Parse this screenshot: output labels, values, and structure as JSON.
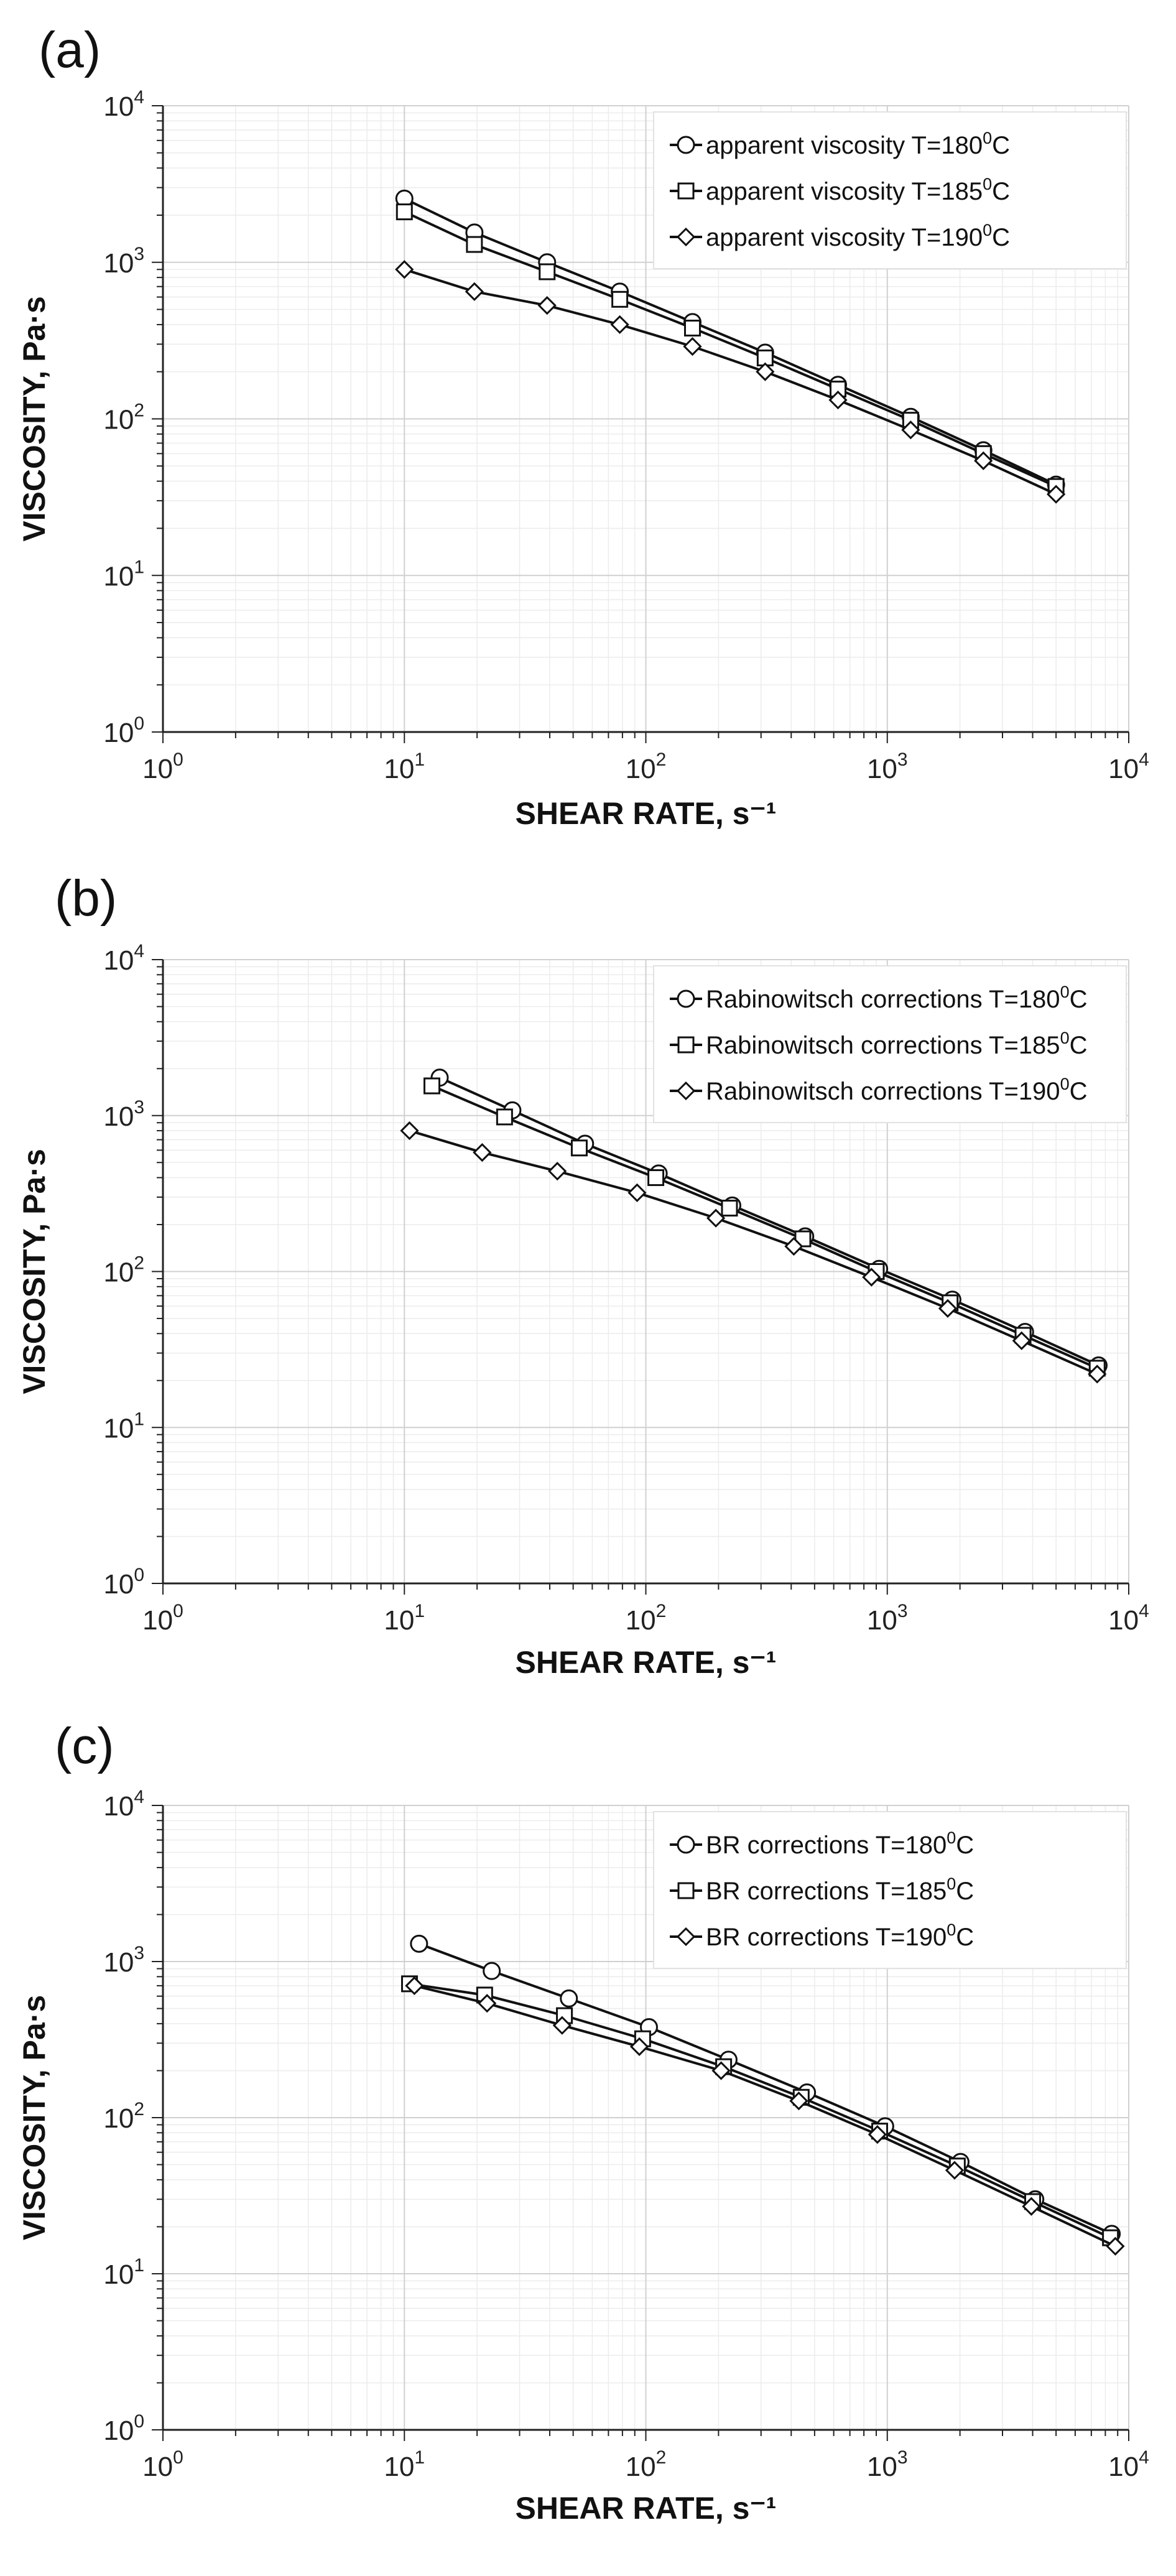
{
  "chart_data": [
    {
      "panel": "(a)",
      "type": "line",
      "xscale": "log",
      "yscale": "log",
      "xlim": [
        1,
        10000
      ],
      "ylim": [
        1,
        10000
      ],
      "xlabel": "SHEAR RATE, s⁻¹",
      "ylabel": "VISCOSITY, Pa·s",
      "x_ticks": [
        {
          "base": "10",
          "exp": "0",
          "value": 1
        },
        {
          "base": "10",
          "exp": "1",
          "value": 10
        },
        {
          "base": "10",
          "exp": "2",
          "value": 100
        },
        {
          "base": "10",
          "exp": "3",
          "value": 1000
        },
        {
          "base": "10",
          "exp": "4",
          "value": 10000
        }
      ],
      "y_ticks": [
        {
          "base": "10",
          "exp": "0",
          "value": 1
        },
        {
          "base": "10",
          "exp": "1",
          "value": 10
        },
        {
          "base": "10",
          "exp": "2",
          "value": 100
        },
        {
          "base": "10",
          "exp": "3",
          "value": 1000
        },
        {
          "base": "10",
          "exp": "4",
          "value": 10000
        }
      ],
      "legend_position": "top-right",
      "series": [
        {
          "name": "apparent viscosity T=180⁰C",
          "label_main": "apparent viscosity T=180",
          "label_sup": "0",
          "label_unit": "C",
          "marker": "circle",
          "x": [
            10,
            19.5,
            39,
            78,
            156,
            312,
            625,
            1250,
            2500,
            5000
          ],
          "y": [
            2550,
            1550,
            1000,
            650,
            415,
            265,
            165,
            103,
            63,
            38
          ]
        },
        {
          "name": "apparent viscosity T=185⁰C",
          "label_main": "apparent viscosity T=185",
          "label_sup": "0",
          "label_unit": "C",
          "marker": "square",
          "x": [
            10,
            19.5,
            39,
            78,
            156,
            312,
            625,
            1250,
            2500,
            5000
          ],
          "y": [
            2100,
            1300,
            870,
            580,
            380,
            245,
            155,
            98,
            60,
            37
          ]
        },
        {
          "name": "apparent viscosity T=190⁰C",
          "label_main": "apparent viscosity T=190",
          "label_sup": "0",
          "label_unit": "C",
          "marker": "diamond",
          "x": [
            10,
            19.5,
            39,
            78,
            156,
            312,
            625,
            1250,
            2500,
            5000
          ],
          "y": [
            900,
            650,
            530,
            400,
            290,
            200,
            132,
            85,
            54,
            33
          ]
        }
      ]
    },
    {
      "panel": "(b)",
      "type": "line",
      "xscale": "log",
      "yscale": "log",
      "xlim": [
        1,
        10000
      ],
      "ylim": [
        1,
        10000
      ],
      "xlabel": "SHEAR RATE, s⁻¹",
      "ylabel": "VISCOSITY, Pa·s",
      "x_ticks": [
        {
          "base": "10",
          "exp": "0",
          "value": 1
        },
        {
          "base": "10",
          "exp": "1",
          "value": 10
        },
        {
          "base": "10",
          "exp": "2",
          "value": 100
        },
        {
          "base": "10",
          "exp": "3",
          "value": 1000
        },
        {
          "base": "10",
          "exp": "4",
          "value": 10000
        }
      ],
      "y_ticks": [
        {
          "base": "10",
          "exp": "0",
          "value": 1
        },
        {
          "base": "10",
          "exp": "1",
          "value": 10
        },
        {
          "base": "10",
          "exp": "2",
          "value": 100
        },
        {
          "base": "10",
          "exp": "3",
          "value": 1000
        },
        {
          "base": "10",
          "exp": "4",
          "value": 10000
        }
      ],
      "legend_position": "top-right",
      "series": [
        {
          "name": "Rabinowitsch corrections T=180⁰C",
          "label_main": "Rabinowitsch corrections T=180",
          "label_sup": "0",
          "label_unit": "C",
          "marker": "circle",
          "x": [
            14,
            28,
            56,
            113,
            228,
            457,
            925,
            1860,
            3720,
            7500
          ],
          "y": [
            1750,
            1080,
            660,
            425,
            265,
            168,
            104,
            66,
            41,
            25
          ]
        },
        {
          "name": "Rabinowitsch corrections T=185⁰C",
          "label_main": "Rabinowitsch corrections T=185",
          "label_sup": "0",
          "label_unit": "C",
          "marker": "square",
          "x": [
            13,
            26,
            53,
            110,
            222,
            447,
            900,
            1820,
            3650,
            7400
          ],
          "y": [
            1550,
            980,
            620,
            400,
            255,
            162,
            100,
            63,
            39,
            24
          ]
        },
        {
          "name": "Rabinowitsch corrections T=190⁰C",
          "label_main": "Rabinowitsch corrections T=190",
          "label_sup": "0",
          "label_unit": "C",
          "marker": "diamond",
          "x": [
            10.5,
            21,
            43,
            92,
            195,
            410,
            860,
            1780,
            3600,
            7400
          ],
          "y": [
            800,
            580,
            440,
            320,
            220,
            145,
            92,
            58,
            36,
            22
          ]
        }
      ]
    },
    {
      "panel": "(c)",
      "type": "line",
      "xscale": "log",
      "yscale": "log",
      "xlim": [
        1,
        10000
      ],
      "ylim": [
        1,
        10000
      ],
      "xlabel": "SHEAR RATE, s⁻¹",
      "ylabel": "VISCOSITY, Pa·s",
      "x_ticks": [
        {
          "base": "10",
          "exp": "0",
          "value": 1
        },
        {
          "base": "10",
          "exp": "1",
          "value": 10
        },
        {
          "base": "10",
          "exp": "2",
          "value": 100
        },
        {
          "base": "10",
          "exp": "3",
          "value": 1000
        },
        {
          "base": "10",
          "exp": "4",
          "value": 10000
        }
      ],
      "y_ticks": [
        {
          "base": "10",
          "exp": "0",
          "value": 1
        },
        {
          "base": "10",
          "exp": "1",
          "value": 10
        },
        {
          "base": "10",
          "exp": "2",
          "value": 100
        },
        {
          "base": "10",
          "exp": "3",
          "value": 1000
        },
        {
          "base": "10",
          "exp": "4",
          "value": 10000
        }
      ],
      "legend_position": "top-right",
      "series": [
        {
          "name": "BR corrections T=180⁰C",
          "label_main": "BR corrections T=180",
          "label_sup": "0",
          "label_unit": "C",
          "marker": "circle",
          "x": [
            11.5,
            23,
            48,
            103,
            220,
            465,
            980,
            2010,
            4100,
            8500
          ],
          "y": [
            1300,
            870,
            580,
            380,
            235,
            145,
            88,
            52,
            30,
            18
          ]
        },
        {
          "name": "BR corrections T=185⁰C",
          "label_main": "BR corrections T=185",
          "label_sup": "0",
          "label_unit": "C",
          "marker": "square",
          "x": [
            10.5,
            21.5,
            46,
            97,
            210,
            440,
            930,
            1950,
            4000,
            8400
          ],
          "y": [
            720,
            610,
            450,
            320,
            212,
            135,
            82,
            49,
            29,
            17
          ]
        },
        {
          "name": "BR corrections T=190⁰C",
          "label_main": "BR corrections T=190",
          "label_sup": "0",
          "label_unit": "C",
          "marker": "diamond",
          "x": [
            11,
            22,
            45,
            94,
            205,
            430,
            910,
            1900,
            3950,
            8800
          ],
          "y": [
            700,
            540,
            390,
            285,
            200,
            128,
            78,
            46,
            27,
            15
          ]
        }
      ]
    }
  ]
}
